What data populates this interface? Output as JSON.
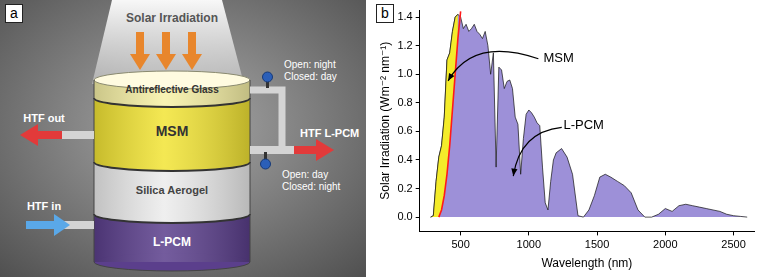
{
  "diagram": {
    "panel": "a",
    "title": "Solar Irradiation",
    "layers": [
      "Antireflective Glass",
      "MSM",
      "Silica Aerogel",
      "L-PCM"
    ],
    "outlet": "HTF out",
    "l_pcm_port": "HTF L-PCM",
    "inlet": "HTF in",
    "upper_valve": [
      "Open: night",
      "Closed: day"
    ],
    "lower_valve": [
      "Open: day",
      "Closed: night"
    ]
  },
  "chart_data": {
    "panel": "b",
    "type": "area",
    "x_label": "Wavelength (nm)",
    "y_label": "Solar Irradiation (Wm⁻² nm⁻¹)",
    "annotations": [
      "MSM",
      "L-PCM"
    ],
    "x": [
      280,
      300,
      320,
      340,
      360,
      380,
      400,
      420,
      440,
      460,
      480,
      500,
      520,
      540,
      560,
      580,
      600,
      620,
      640,
      660,
      680,
      700,
      720,
      740,
      760,
      780,
      800,
      820,
      840,
      860,
      880,
      900,
      920,
      940,
      960,
      980,
      1000,
      1020,
      1040,
      1060,
      1080,
      1100,
      1120,
      1140,
      1160,
      1180,
      1200,
      1240,
      1280,
      1320,
      1360,
      1400,
      1440,
      1480,
      1520,
      1560,
      1600,
      1650,
      1700,
      1750,
      1800,
      1850,
      1900,
      1950,
      2000,
      2050,
      2100,
      2150,
      2200,
      2250,
      2300,
      2350,
      2400,
      2450,
      2500,
      2550,
      2600
    ],
    "series": [
      {
        "type": "area",
        "color": "#9d90d8",
        "values": [
          0,
          0.01,
          0.25,
          0.42,
          0.5,
          0.7,
          1.1,
          1.15,
          1.3,
          1.4,
          1.42,
          1.4,
          1.32,
          1.35,
          1.3,
          1.32,
          1.35,
          1.3,
          1.28,
          1.25,
          1.3,
          1.2,
          1.0,
          1.15,
          0.35,
          1.05,
          1.03,
          0.9,
          0.95,
          0.96,
          0.9,
          0.7,
          0.65,
          0.3,
          0.55,
          0.72,
          0.75,
          0.73,
          0.7,
          0.66,
          0.64,
          0.35,
          0.1,
          0.05,
          0.25,
          0.4,
          0.45,
          0.48,
          0.42,
          0.3,
          0.01,
          0,
          0.05,
          0.15,
          0.28,
          0.3,
          0.28,
          0.25,
          0.22,
          0.17,
          0.05,
          0,
          0,
          0.02,
          0.06,
          0.04,
          0.08,
          0.09,
          0.08,
          0.07,
          0.06,
          0.05,
          0.04,
          0.02,
          0.01,
          0.005,
          0
        ]
      },
      {
        "type": "area",
        "color": "#f4ec2a",
        "values": [
          0,
          0.01,
          0.25,
          0.42,
          0.5,
          0.7,
          1.1,
          1.15,
          1.3,
          1.4,
          1.42,
          null,
          null,
          null,
          null,
          null,
          null,
          null,
          null,
          null,
          null,
          null,
          null,
          null,
          null,
          null,
          null,
          null,
          null,
          null,
          null,
          null,
          null,
          null,
          null,
          null,
          null,
          null,
          null,
          null,
          null,
          null,
          null,
          null,
          null,
          null,
          null,
          null,
          null,
          null,
          null,
          null,
          null,
          null,
          null,
          null,
          null,
          null,
          null,
          null,
          null,
          null,
          null,
          null,
          null,
          null,
          null,
          null,
          null,
          null,
          null,
          null,
          null,
          null,
          null,
          null,
          null
        ]
      },
      {
        "type": "line",
        "color": "#ff1a1a",
        "values": [
          null,
          null,
          null,
          0,
          0.05,
          0.15,
          0.3,
          0.5,
          0.75,
          1.0,
          1.25,
          1.44,
          null,
          null,
          null,
          null,
          null,
          null,
          null,
          null,
          null,
          null,
          null,
          null,
          null,
          null,
          null,
          null,
          null,
          null,
          null,
          null,
          null,
          null,
          null,
          null,
          null,
          null,
          null,
          null,
          null,
          null,
          null,
          null,
          null,
          null,
          null,
          null,
          null,
          null,
          null,
          null,
          null,
          null,
          null,
          null,
          null,
          null,
          null,
          null,
          null,
          null,
          null,
          null,
          null,
          null,
          null,
          null,
          null,
          null,
          null,
          null,
          null,
          null,
          null,
          null,
          null
        ]
      }
    ],
    "xlim": [
      200,
      2650
    ],
    "xticks": [
      500,
      1000,
      1500,
      2000,
      2500
    ],
    "ylim": [
      -0.1,
      1.45
    ],
    "yticks": [
      {
        "value": 0,
        "label": "0.0"
      },
      0.2,
      0.4,
      0.6,
      0.8,
      {
        "value": 1,
        "label": "1.0"
      },
      1.2,
      1.4
    ],
    "grid": false
  }
}
